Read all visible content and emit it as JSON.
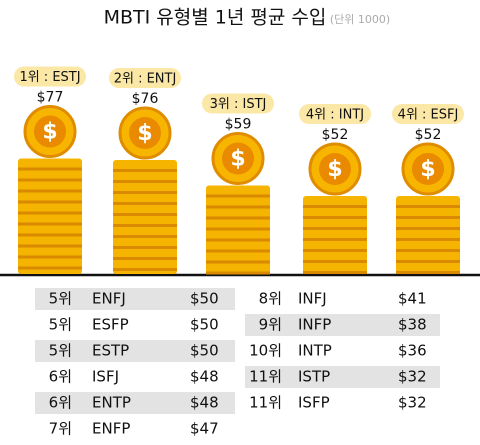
{
  "chart_data": {
    "type": "bar",
    "title": "MBTI 유형별 1년 평균 수입",
    "subtitle": "(단위 1000)",
    "categories": [
      "1위 : ESTJ",
      "2위 : ENTJ",
      "3위 : ISTJ",
      "4위 : INTJ",
      "4위 : ESFJ"
    ],
    "values": [
      77,
      76,
      59,
      52,
      52
    ],
    "value_labels": [
      "$77",
      "$76",
      "$59",
      "$52",
      "$52"
    ],
    "color": "#f5b400"
  },
  "table": {
    "columns": [
      [
        [
          "5위",
          "ENFJ",
          "$50"
        ],
        [
          "5위",
          "ESFP",
          "$50"
        ],
        [
          "5위",
          "ESTP",
          "$50"
        ],
        [
          "6위",
          "ISFJ",
          "$48"
        ],
        [
          "6위",
          "ENTP",
          "$48"
        ],
        [
          "7위",
          "ENFP",
          "$47"
        ]
      ],
      [
        [
          "8위",
          "INFJ",
          "$41"
        ],
        [
          "9위",
          "INFP",
          "$38"
        ],
        [
          "10위",
          "INTP",
          "$36"
        ],
        [
          "11위",
          "ISTP",
          "$32"
        ],
        [
          "11위",
          "ISFP",
          "$32"
        ]
      ]
    ]
  }
}
